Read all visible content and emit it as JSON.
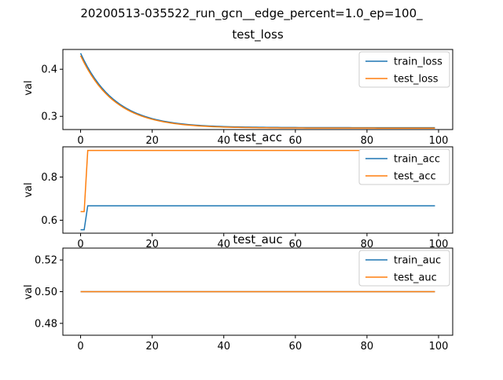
{
  "figure_title": "20200513-035522_run_gcn__edge_percent=1.0_ep=100_",
  "colors": {
    "train": "#1f77b4",
    "test": "#ff7f0e"
  },
  "chart_data": [
    {
      "type": "line",
      "title": "test_loss",
      "xlabel": "",
      "ylabel": "val",
      "xlim": [
        -4.95,
        103.95
      ],
      "ylim": [
        0.272,
        0.442
      ],
      "xticks": [
        0,
        20,
        40,
        60,
        80,
        100
      ],
      "yticks": [
        0.3,
        0.4
      ],
      "ytick_labels": [
        "0.3",
        "0.4"
      ],
      "legend_loc": "upper-right",
      "series": [
        {
          "name": "train_loss",
          "color": "#1f77b4",
          "kind": "exp",
          "start": 0.434,
          "end": 0.276,
          "tau": 9.5
        },
        {
          "name": "test_loss",
          "color": "#ff7f0e",
          "kind": "exp",
          "start": 0.429,
          "end": 0.275,
          "tau": 9.5
        }
      ]
    },
    {
      "type": "line",
      "title": "test_acc",
      "xlabel": "",
      "ylabel": "val",
      "xlim": [
        -4.95,
        103.95
      ],
      "ylim": [
        0.54,
        0.94
      ],
      "xticks": [
        0,
        20,
        40,
        60,
        80,
        100
      ],
      "yticks": [
        0.6,
        0.8
      ],
      "ytick_labels": [
        "0.6",
        "0.8"
      ],
      "legend_loc": "upper-right",
      "series": [
        {
          "name": "train_acc",
          "color": "#1f77b4",
          "kind": "points",
          "x": [
            0,
            1,
            2,
            99
          ],
          "y": [
            0.556,
            0.556,
            0.667,
            0.667
          ]
        },
        {
          "name": "test_acc",
          "color": "#ff7f0e",
          "kind": "points",
          "x": [
            0,
            1,
            2,
            99
          ],
          "y": [
            0.64,
            0.64,
            0.923,
            0.923
          ]
        }
      ]
    },
    {
      "type": "line",
      "title": "test_auc",
      "xlabel": "",
      "ylabel": "val",
      "xlim": [
        -4.95,
        103.95
      ],
      "ylim": [
        0.4725,
        0.5275
      ],
      "xticks": [
        0,
        20,
        40,
        60,
        80,
        100
      ],
      "yticks": [
        0.48,
        0.5,
        0.52
      ],
      "ytick_labels": [
        "0.48",
        "0.50",
        "0.52"
      ],
      "legend_loc": "upper-right",
      "series": [
        {
          "name": "train_auc",
          "color": "#1f77b4",
          "kind": "points",
          "x": [
            0,
            99
          ],
          "y": [
            0.5,
            0.5
          ]
        },
        {
          "name": "test_auc",
          "color": "#ff7f0e",
          "kind": "points",
          "x": [
            0,
            99
          ],
          "y": [
            0.5,
            0.5
          ]
        }
      ]
    }
  ]
}
